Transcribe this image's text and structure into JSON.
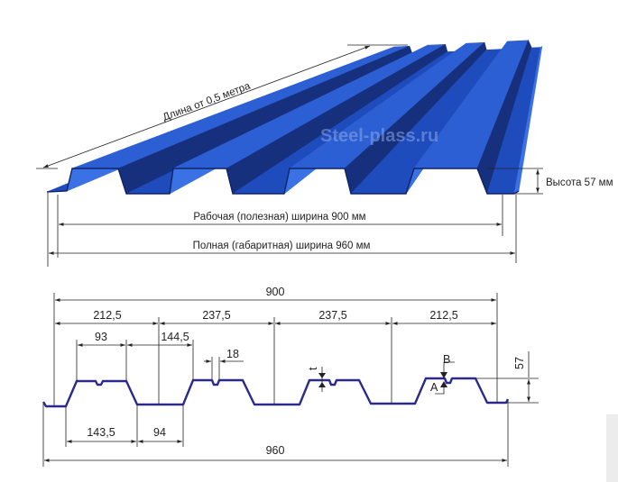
{
  "perspective_view": {
    "length_label": "Длина от 0,5 метра",
    "height_label": "Высота 57 мм",
    "working_width_label": "Рабочая (полезная) ширина 900 мм",
    "full_width_label": "Полная (габаритная) ширина 960 мм",
    "watermark": "Steel-plass.ru",
    "sheet_color": "#2a5bd0"
  },
  "profile_section": {
    "profile_color": "#2b2a8c",
    "total_working": "900",
    "segments": [
      "212,5",
      "237,5",
      "237,5",
      "212,5"
    ],
    "top_flange": "93",
    "top_to_axis": "144,5",
    "groove_width": "18",
    "thickness": "t",
    "point_b": "B",
    "point_a": "A",
    "height": "57",
    "rib_base": "143,5",
    "bottom_flange": "94",
    "total_full": "960"
  }
}
